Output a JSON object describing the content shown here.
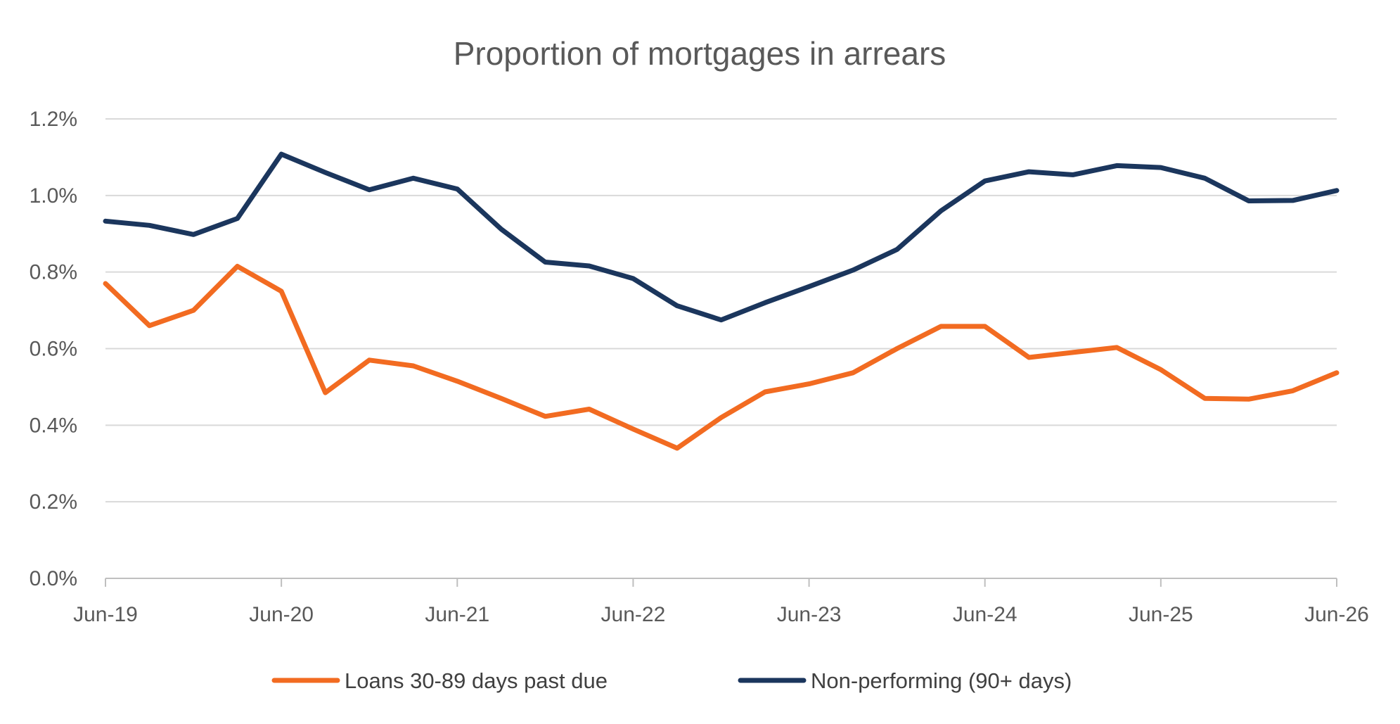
{
  "chart_data": {
    "type": "line",
    "title": "Proportion of mortgages in arrears",
    "xlabel": "",
    "ylabel": "",
    "x": [
      "Jun-19",
      "Sep-19",
      "Dec-19",
      "Mar-20",
      "Jun-20",
      "Sep-20",
      "Dec-20",
      "Mar-21",
      "Jun-21",
      "Sep-21",
      "Dec-21",
      "Mar-22",
      "Jun-22",
      "Sep-22",
      "Dec-22",
      "Mar-23",
      "Jun-23",
      "Sep-23",
      "Dec-23",
      "Mar-24",
      "Jun-24",
      "Sep-24",
      "Dec-24",
      "Mar-25",
      "Jun-25",
      "Sep-25",
      "Dec-25",
      "Mar-26",
      "Jun-26"
    ],
    "x_ticks": [
      "Jun-19",
      "Jun-20",
      "Jun-21",
      "Jun-22",
      "Jun-23",
      "Jun-24",
      "Jun-25",
      "Jun-26"
    ],
    "y_ticks": [
      "0.0%",
      "0.2%",
      "0.4%",
      "0.6%",
      "0.8%",
      "1.0%",
      "1.2%"
    ],
    "ylim": [
      0,
      1.2
    ],
    "y_tick_values": [
      0,
      0.2,
      0.4,
      0.6,
      0.8,
      1.0,
      1.2
    ],
    "grid": true,
    "legend_position": "bottom",
    "series": [
      {
        "name": "Loans 30-89 days past due",
        "color": "#f26b21",
        "values": [
          0.77,
          0.66,
          0.7,
          0.815,
          0.75,
          0.485,
          0.57,
          0.555,
          0.515,
          0.47,
          0.423,
          0.442,
          0.39,
          0.34,
          0.42,
          0.487,
          0.508,
          0.537,
          0.6,
          0.658,
          0.658,
          0.577,
          0.59,
          0.603,
          0.545,
          0.47,
          0.468,
          0.49,
          0.537
        ]
      },
      {
        "name": "Non-performing (90+ days)",
        "color": "#1b365d",
        "values": [
          0.933,
          0.922,
          0.898,
          0.94,
          1.108,
          1.06,
          1.015,
          1.045,
          1.017,
          0.912,
          0.826,
          0.816,
          0.783,
          0.712,
          0.675,
          0.72,
          0.762,
          0.805,
          0.859,
          0.96,
          1.038,
          1.062,
          1.054,
          1.078,
          1.073,
          1.045,
          0.986,
          0.987,
          1.013
        ]
      }
    ]
  }
}
